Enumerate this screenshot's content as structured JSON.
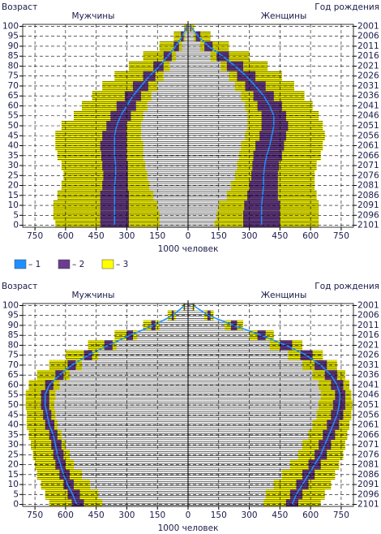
{
  "legend": [
    {
      "name": "– 1",
      "color": "#1e8fff"
    },
    {
      "name": "– 2",
      "color": "#6a3d8f"
    },
    {
      "name": "– 3",
      "color": "#ffff00"
    }
  ],
  "chart_data": [
    {
      "type": "pyramid",
      "y_label": "Возраст",
      "y2_label": "Год рождения",
      "left_label": "Мужчины",
      "right_label": "Женщины",
      "x_label": "1000 человек",
      "xlim": [
        0,
        810
      ],
      "xticks_left": [
        750,
        600,
        450,
        300,
        150,
        0
      ],
      "xticks_right": [
        150,
        300,
        450,
        600,
        750
      ],
      "ylim": [
        -1,
        101
      ],
      "yticks": [
        0,
        5,
        10,
        15,
        20,
        25,
        30,
        35,
        40,
        45,
        50,
        55,
        60,
        65,
        70,
        75,
        80,
        85,
        90,
        95,
        100
      ],
      "y2lim": [
        2102,
        2000
      ],
      "y2ticks": [
        2001,
        2006,
        2011,
        2016,
        2021,
        2026,
        2031,
        2036,
        2041,
        2046,
        2051,
        2056,
        2061,
        2066,
        2071,
        2076,
        2081,
        2086,
        2091,
        2096,
        2101
      ],
      "ages": [
        0,
        5,
        10,
        15,
        20,
        25,
        30,
        35,
        40,
        45,
        50,
        55,
        60,
        65,
        70,
        75,
        80,
        85,
        90,
        95,
        100
      ],
      "men": {
        "outer3": [
          650,
          660,
          660,
          640,
          620,
          610,
          620,
          640,
          650,
          650,
          620,
          560,
          520,
          470,
          420,
          360,
          290,
          220,
          140,
          70,
          20
        ],
        "outer2": [
          430,
          430,
          430,
          430,
          420,
          415,
          420,
          425,
          430,
          420,
          400,
          380,
          350,
          310,
          270,
          220,
          170,
          120,
          70,
          35,
          10
        ],
        "line1": [
          360,
          360,
          360,
          360,
          360,
          355,
          355,
          360,
          360,
          360,
          350,
          330,
          300,
          270,
          230,
          190,
          140,
          100,
          60,
          28,
          8
        ],
        "inner2": [
          290,
          290,
          290,
          290,
          295,
          295,
          295,
          300,
          300,
          300,
          300,
          280,
          255,
          230,
          195,
          160,
          120,
          80,
          45,
          22,
          6
        ],
        "inner3": [
          140,
          140,
          150,
          170,
          190,
          200,
          210,
          220,
          220,
          230,
          230,
          220,
          200,
          180,
          150,
          120,
          90,
          60,
          30,
          15,
          4
        ]
      },
      "women": {
        "outer3": [
          640,
          640,
          640,
          630,
          620,
          620,
          630,
          650,
          660,
          670,
          660,
          640,
          610,
          570,
          520,
          460,
          390,
          300,
          200,
          110,
          30
        ],
        "outer2": [
          450,
          450,
          450,
          440,
          440,
          440,
          445,
          460,
          470,
          480,
          490,
          480,
          460,
          420,
          380,
          330,
          270,
          200,
          120,
          60,
          15
        ],
        "line1": [
          360,
          360,
          360,
          365,
          370,
          370,
          375,
          385,
          400,
          410,
          420,
          420,
          400,
          370,
          330,
          285,
          230,
          170,
          100,
          50,
          12
        ],
        "inner2": [
          270,
          270,
          275,
          290,
          300,
          310,
          315,
          320,
          330,
          350,
          360,
          360,
          340,
          320,
          280,
          240,
          190,
          140,
          80,
          38,
          10
        ],
        "inner3": [
          130,
          140,
          150,
          190,
          210,
          230,
          240,
          250,
          260,
          280,
          290,
          290,
          280,
          260,
          230,
          200,
          160,
          110,
          60,
          28,
          8
        ]
      }
    },
    {
      "type": "pyramid",
      "y_label": "Возраст",
      "y2_label": "Год рождения",
      "left_label": "Мужчины",
      "right_label": "Женщины",
      "x_label": "1000 человек",
      "xlim": [
        0,
        810
      ],
      "xticks_left": [
        750,
        600,
        450,
        300,
        150,
        0
      ],
      "xticks_right": [
        150,
        300,
        450,
        600,
        750
      ],
      "ylim": [
        -1,
        101
      ],
      "yticks": [
        0,
        5,
        10,
        15,
        20,
        25,
        30,
        35,
        40,
        45,
        50,
        55,
        60,
        65,
        70,
        75,
        80,
        85,
        90,
        95,
        100
      ],
      "y2lim": [
        2102,
        2000
      ],
      "y2ticks": [
        2001,
        2006,
        2011,
        2016,
        2021,
        2026,
        2031,
        2036,
        2041,
        2046,
        2051,
        2056,
        2061,
        2066,
        2071,
        2076,
        2081,
        2086,
        2091,
        2096,
        2101
      ],
      "ages": [
        0,
        5,
        10,
        15,
        20,
        25,
        30,
        35,
        40,
        45,
        50,
        55,
        60,
        65,
        70,
        75,
        80,
        85,
        90,
        95,
        100
      ],
      "men": {
        "outer3": [
          680,
          700,
          720,
          740,
          750,
          760,
          770,
          780,
          790,
          790,
          795,
          795,
          780,
          740,
          680,
          600,
          490,
          360,
          220,
          100,
          25
        ],
        "outer2": [
          570,
          590,
          610,
          630,
          650,
          660,
          670,
          680,
          700,
          710,
          720,
          720,
          700,
          650,
          590,
          510,
          410,
          300,
          180,
          80,
          20
        ],
        "line1": [
          545,
          565,
          590,
          610,
          625,
          640,
          650,
          660,
          680,
          690,
          700,
          700,
          680,
          630,
          570,
          490,
          390,
          285,
          170,
          75,
          18
        ],
        "inner2": [
          510,
          530,
          560,
          580,
          600,
          610,
          620,
          640,
          655,
          670,
          680,
          680,
          660,
          610,
          550,
          470,
          370,
          270,
          160,
          70,
          16
        ],
        "inner3": [
          420,
          440,
          480,
          520,
          560,
          580,
          600,
          620,
          640,
          650,
          655,
          650,
          630,
          580,
          520,
          440,
          350,
          250,
          140,
          60,
          14
        ]
      },
      "women": {
        "outer3": [
          650,
          670,
          700,
          720,
          740,
          760,
          770,
          780,
          790,
          800,
          805,
          800,
          790,
          770,
          730,
          660,
          560,
          420,
          270,
          125,
          32
        ],
        "outer2": [
          540,
          560,
          590,
          620,
          650,
          680,
          700,
          720,
          740,
          760,
          770,
          770,
          760,
          730,
          680,
          610,
          510,
          380,
          240,
          110,
          28
        ],
        "line1": [
          510,
          530,
          560,
          590,
          620,
          650,
          670,
          690,
          710,
          730,
          740,
          745,
          730,
          700,
          650,
          580,
          480,
          360,
          225,
          100,
          26
        ],
        "inner2": [
          480,
          500,
          530,
          560,
          590,
          620,
          640,
          660,
          680,
          700,
          710,
          720,
          700,
          670,
          620,
          550,
          450,
          340,
          210,
          95,
          24
        ],
        "inner3": [
          370,
          380,
          420,
          460,
          500,
          540,
          560,
          590,
          610,
          630,
          640,
          650,
          640,
          610,
          560,
          490,
          400,
          300,
          180,
          80,
          20
        ]
      }
    }
  ]
}
